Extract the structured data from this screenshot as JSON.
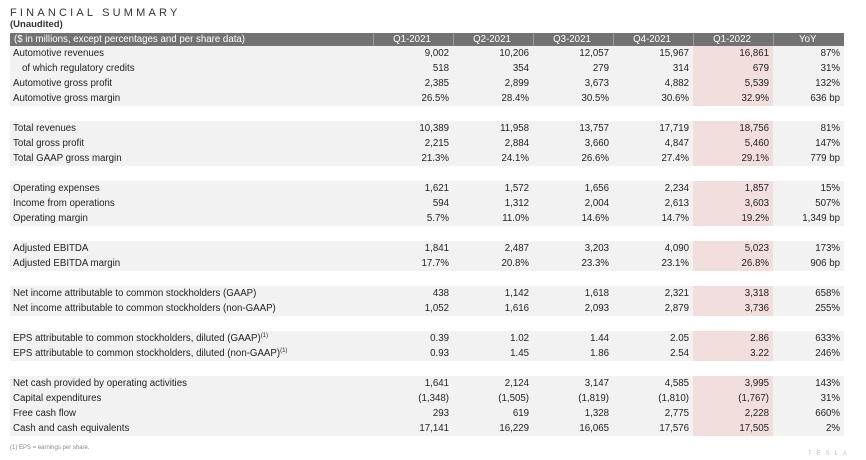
{
  "title": "FINANCIAL SUMMARY",
  "subtitle": "(Unaudited)",
  "header": {
    "label": "($ in millions, except percentages and per share data)",
    "columns": [
      "Q1-2021",
      "Q2-2021",
      "Q3-2021",
      "Q4-2021",
      "Q1-2022",
      "YoY"
    ]
  },
  "rows": [
    {
      "label": "Automotive revenues",
      "values": [
        "9,002",
        "10,206",
        "12,057",
        "15,967",
        "16,861",
        "87%"
      ]
    },
    {
      "label": "of which regulatory credits",
      "indent": true,
      "values": [
        "518",
        "354",
        "279",
        "314",
        "679",
        "31%"
      ]
    },
    {
      "label": "Automotive gross profit",
      "values": [
        "2,385",
        "2,899",
        "3,673",
        "4,882",
        "5,539",
        "132%"
      ]
    },
    {
      "label": "Automotive gross margin",
      "values": [
        "26.5%",
        "28.4%",
        "30.5%",
        "30.6%",
        "32.9%",
        "636 bp"
      ]
    },
    {
      "spacer": true
    },
    {
      "label": "Total revenues",
      "values": [
        "10,389",
        "11,958",
        "13,757",
        "17,719",
        "18,756",
        "81%"
      ]
    },
    {
      "label": "Total gross profit",
      "values": [
        "2,215",
        "2,884",
        "3,660",
        "4,847",
        "5,460",
        "147%"
      ]
    },
    {
      "label": "Total GAAP gross margin",
      "values": [
        "21.3%",
        "24.1%",
        "26.6%",
        "27.4%",
        "29.1%",
        "779 bp"
      ]
    },
    {
      "spacer": true
    },
    {
      "label": "Operating expenses",
      "values": [
        "1,621",
        "1,572",
        "1,656",
        "2,234",
        "1,857",
        "15%"
      ]
    },
    {
      "label": "Income from operations",
      "values": [
        "594",
        "1,312",
        "2,004",
        "2,613",
        "3,603",
        "507%"
      ]
    },
    {
      "label": "Operating margin",
      "values": [
        "5.7%",
        "11.0%",
        "14.6%",
        "14.7%",
        "19.2%",
        "1,349 bp"
      ]
    },
    {
      "spacer": true
    },
    {
      "label": "Adjusted EBITDA",
      "values": [
        "1,841",
        "2,487",
        "3,203",
        "4,090",
        "5,023",
        "173%"
      ]
    },
    {
      "label": "Adjusted EBITDA margin",
      "values": [
        "17.7%",
        "20.8%",
        "23.3%",
        "23.1%",
        "26.8%",
        "906 bp"
      ]
    },
    {
      "spacer": true
    },
    {
      "label": "Net income attributable to common stockholders (GAAP)",
      "values": [
        "438",
        "1,142",
        "1,618",
        "2,321",
        "3,318",
        "658%"
      ]
    },
    {
      "label": "Net income attributable to common stockholders (non-GAAP)",
      "values": [
        "1,052",
        "1,616",
        "2,093",
        "2,879",
        "3,736",
        "255%"
      ]
    },
    {
      "spacer": true
    },
    {
      "label": "EPS attributable to common stockholders, diluted (GAAP)",
      "sup": "(1)",
      "values": [
        "0.39",
        "1.02",
        "1.44",
        "2.05",
        "2.86",
        "633%"
      ]
    },
    {
      "label": "EPS attributable to common stockholders, diluted (non-GAAP)",
      "sup": "(1)",
      "values": [
        "0.93",
        "1.45",
        "1.86",
        "2.54",
        "3.22",
        "246%"
      ]
    },
    {
      "spacer": true
    },
    {
      "label": "Net cash provided by operating activities",
      "values": [
        "1,641",
        "2,124",
        "3,147",
        "4,585",
        "3,995",
        "143%"
      ]
    },
    {
      "label": "Capital expenditures",
      "values": [
        "(1,348)",
        "(1,505)",
        "(1,819)",
        "(1,810)",
        "(1,767)",
        "31%"
      ]
    },
    {
      "label": "Free cash flow",
      "values": [
        "293",
        "619",
        "1,328",
        "2,775",
        "2,228",
        "660%"
      ]
    },
    {
      "label": "Cash and cash equivalents",
      "values": [
        "17,141",
        "16,229",
        "16,065",
        "17,576",
        "17,505",
        "2%"
      ]
    }
  ],
  "highlight_column_index": 4,
  "colors": {
    "header_bg": "#727272",
    "row_bg": "#f2f2f2",
    "highlight_bg": "#f3dede"
  },
  "footnote": "(1) EPS = earnings per share.",
  "logo_text": "TESLA"
}
